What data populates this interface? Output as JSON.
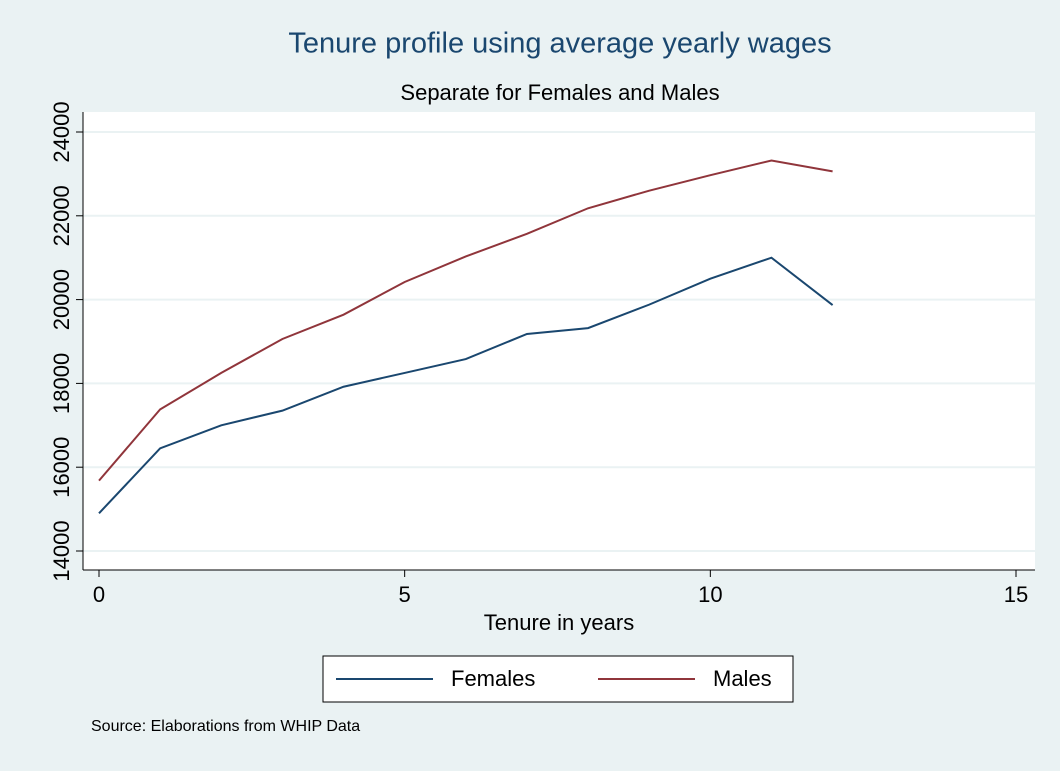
{
  "chart_data": {
    "type": "line",
    "title": "Tenure profile using average yearly wages",
    "subtitle": "Separate for Females and Males",
    "x_label": "Tenure in years",
    "note": "Source: Elaborations from WHIP Data",
    "x": [
      0,
      1,
      2,
      3,
      4,
      5,
      6,
      7,
      8,
      9,
      10,
      11,
      12
    ],
    "series": [
      {
        "name": "Females",
        "color": "#1a476f",
        "values": [
          14900,
          16450,
          17000,
          17350,
          17920,
          18250,
          18580,
          19180,
          19320,
          19880,
          20500,
          21000,
          19870
        ]
      },
      {
        "name": "Males",
        "color": "#90353b",
        "values": [
          15680,
          17380,
          18250,
          19060,
          19640,
          20420,
          21030,
          21570,
          22180,
          22600,
          22970,
          23320,
          23060
        ]
      }
    ],
    "xlim": [
      0,
      15
    ],
    "xticks": [
      0,
      5,
      10,
      15
    ],
    "ylim": [
      14000,
      24000
    ],
    "yticks": [
      14000,
      16000,
      18000,
      20000,
      22000,
      24000
    ],
    "grid": true,
    "legend": "bottom"
  }
}
